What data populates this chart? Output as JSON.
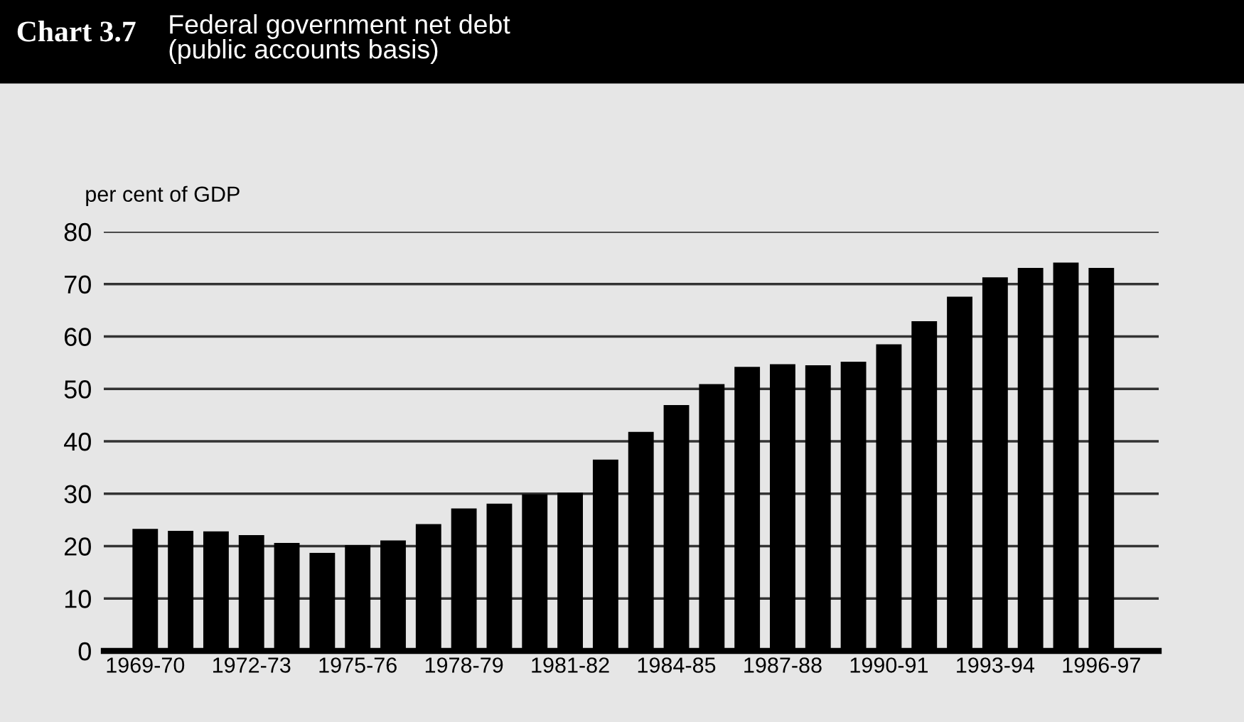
{
  "chart_data": {
    "type": "bar",
    "title": "Chart 3.7",
    "subtitle": "Federal government net debt\n(public accounts basis)",
    "ylabel": "per cent of GDP",
    "categories": [
      "1969-70",
      null,
      null,
      "1972-73",
      null,
      null,
      "1975-76",
      null,
      null,
      "1978-79",
      null,
      null,
      "1981-82",
      null,
      null,
      "1984-85",
      null,
      null,
      "1987-88",
      null,
      null,
      "1990-91",
      null,
      null,
      "1993-94",
      null,
      null,
      "1996-97"
    ],
    "values": [
      23.3,
      22.9,
      22.8,
      22.1,
      20.6,
      18.7,
      20.2,
      21.1,
      24.2,
      27.2,
      28.1,
      29.9,
      30.2,
      36.5,
      41.8,
      46.9,
      50.9,
      54.2,
      54.7,
      54.5,
      55.2,
      58.5,
      62.9,
      67.6,
      71.3,
      73.1,
      74.1,
      73.1
    ],
    "color": "#000000",
    "ylim": [
      0,
      80
    ],
    "yticks": [
      0,
      10,
      20,
      30,
      40,
      50,
      60,
      70,
      80
    ],
    "grid": "y",
    "legend": false
  }
}
